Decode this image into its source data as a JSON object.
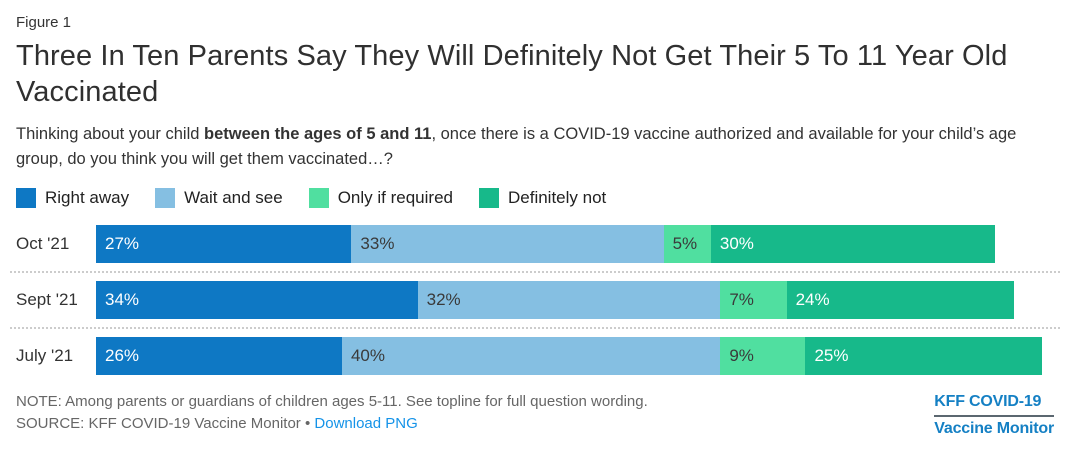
{
  "figure_label": "Figure 1",
  "title": "Three In Ten Parents Say They Will Definitely Not Get Their 5 To 11 Year Old Vaccinated",
  "subtitle": {
    "pre": "Thinking about your child ",
    "bold": "between the ages of 5 and 11",
    "post": ", once there is a COVID-19 vaccine authorized and available for your child’s age group, do you think you will get them vaccinated…?"
  },
  "chart_data": {
    "type": "bar",
    "stacked": true,
    "orientation": "horizontal",
    "title": "Three In Ten Parents Say They Will Definitely Not Get Their 5 To 11 Year Old Vaccinated",
    "categories": [
      "Oct '21",
      "Sept '21",
      "July '21"
    ],
    "series": [
      {
        "name": "Right away",
        "color": "#0e78c4",
        "values": [
          27,
          34,
          26
        ]
      },
      {
        "name": "Wait and see",
        "color": "#85bfe2",
        "values": [
          33,
          32,
          40
        ]
      },
      {
        "name": "Only if required",
        "color": "#50dfa0",
        "values": [
          5,
          7,
          9
        ]
      },
      {
        "name": "Definitely not",
        "color": "#17b98a",
        "values": [
          30,
          24,
          25
        ]
      }
    ],
    "value_suffix": "%",
    "label_text_colors": [
      "#ffffff",
      "#3a3a3a",
      "#3a3a3a",
      "#ffffff"
    ],
    "xlim": [
      0,
      100
    ],
    "grid": false,
    "legend_position": "top"
  },
  "footer": {
    "note": "NOTE: Among parents or guardians of children ages 5-11. See topline for full question wording.",
    "source": "SOURCE: KFF COVID-19 Vaccine Monitor",
    "separator": "•",
    "download_label": "Download PNG",
    "logo_line1": "KFF COVID-19",
    "logo_line2": "Vaccine Monitor"
  }
}
